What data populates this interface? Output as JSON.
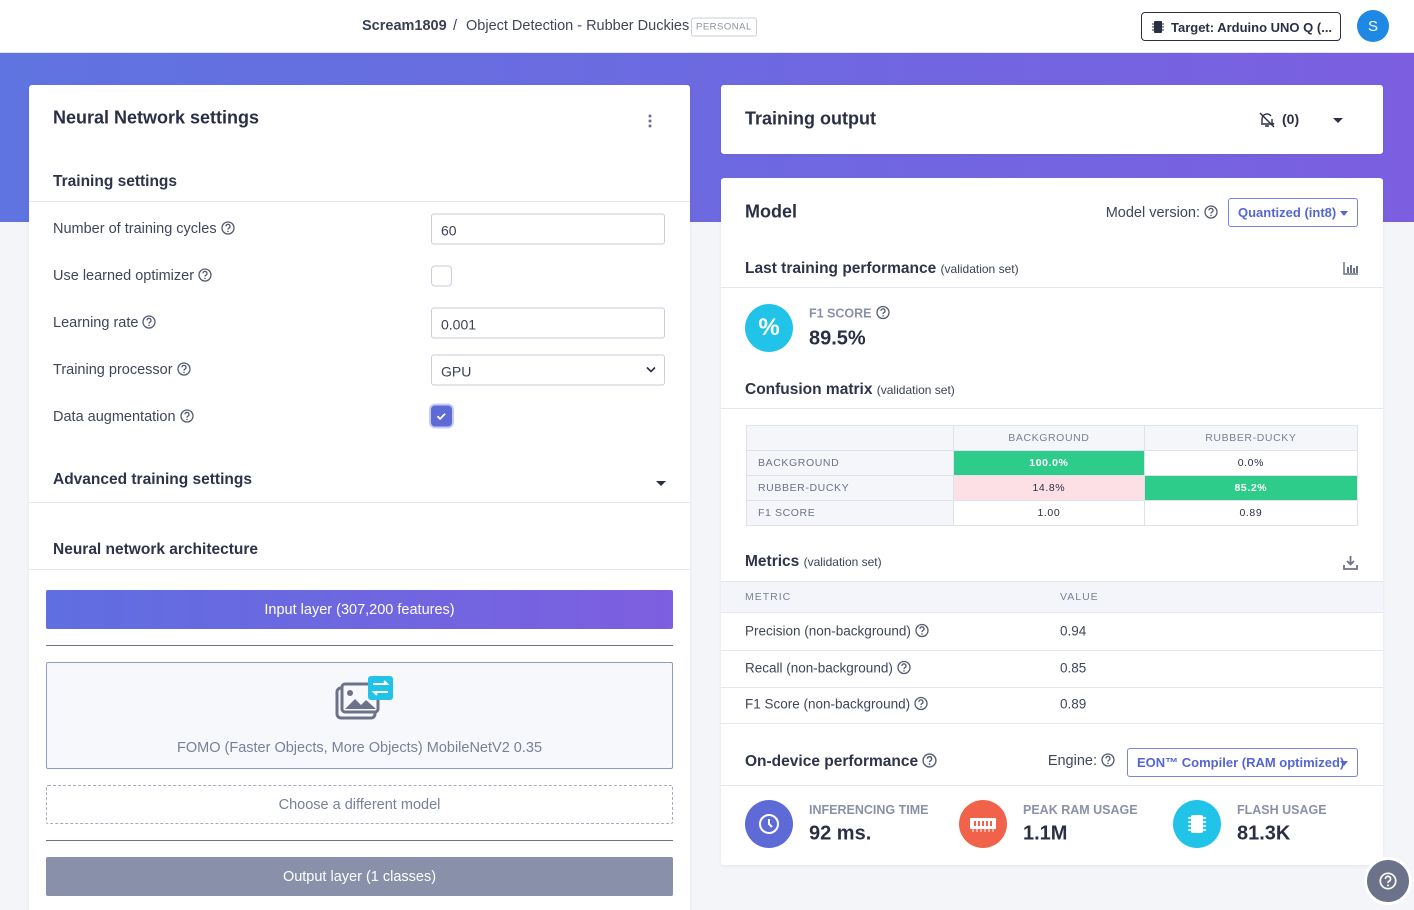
{
  "header": {
    "user": "Scream1809",
    "separator": "/",
    "project": "Object Detection - Rubber Duckies",
    "badge": "PERSONAL",
    "target": "Target: Arduino UNO Q (...",
    "avatar": "S"
  },
  "left": {
    "title": "Neural Network settings",
    "training_settings": "Training settings",
    "fields": [
      {
        "label": "Number of training cycles",
        "value": "60"
      },
      {
        "label": "Use learned optimizer",
        "checked": false
      },
      {
        "label": "Learning rate",
        "value": "0.001"
      },
      {
        "label": "Training processor",
        "value": "GPU"
      },
      {
        "label": "Data augmentation",
        "checked": true
      }
    ],
    "advanced": "Advanced training settings",
    "architecture": "Neural network architecture",
    "input_layer": "Input layer (307,200 features)",
    "model_name": "FOMO (Faster Objects, More Objects) MobileNetV2 0.35",
    "choose_model": "Choose a different model",
    "output_layer": "Output layer (1 classes)"
  },
  "right": {
    "training_output": {
      "title": "Training output",
      "count": "(0)"
    },
    "model": {
      "title": "Model",
      "version_label": "Model version:",
      "version": "Quantized (int8)"
    },
    "last_perf": {
      "title": "Last training performance",
      "subtitle": "(validation set)"
    },
    "f1": {
      "label": "F1 SCORE",
      "value": "89.5%"
    },
    "confusion": {
      "title": "Confusion matrix",
      "subtitle": "(validation set)",
      "columns": [
        "BACKGROUND",
        "RUBBER-DUCKY"
      ],
      "rows": [
        {
          "label": "BACKGROUND",
          "cells": [
            "100.0%",
            "0.0%"
          ]
        },
        {
          "label": "RUBBER-DUCKY",
          "cells": [
            "14.8%",
            "85.2%"
          ]
        },
        {
          "label": "F1 SCORE",
          "cells": [
            "1.00",
            "0.89"
          ]
        }
      ]
    },
    "metrics": {
      "title": "Metrics",
      "subtitle": "(validation set)",
      "columns": [
        "METRIC",
        "VALUE"
      ],
      "rows": [
        [
          "Precision (non-background)",
          "0.94"
        ],
        [
          "Recall (non-background)",
          "0.85"
        ],
        [
          "F1 Score (non-background)",
          "0.89"
        ]
      ]
    },
    "on_device": {
      "title": "On-device performance",
      "engine_label": "Engine:",
      "engine": "EON™ Compiler (RAM optimized)",
      "stats": [
        {
          "label": "INFERENCING TIME",
          "value": "92 ms."
        },
        {
          "label": "PEAK RAM USAGE",
          "value": "1.1M"
        },
        {
          "label": "FLASH USAGE",
          "value": "81.3K"
        }
      ]
    }
  }
}
